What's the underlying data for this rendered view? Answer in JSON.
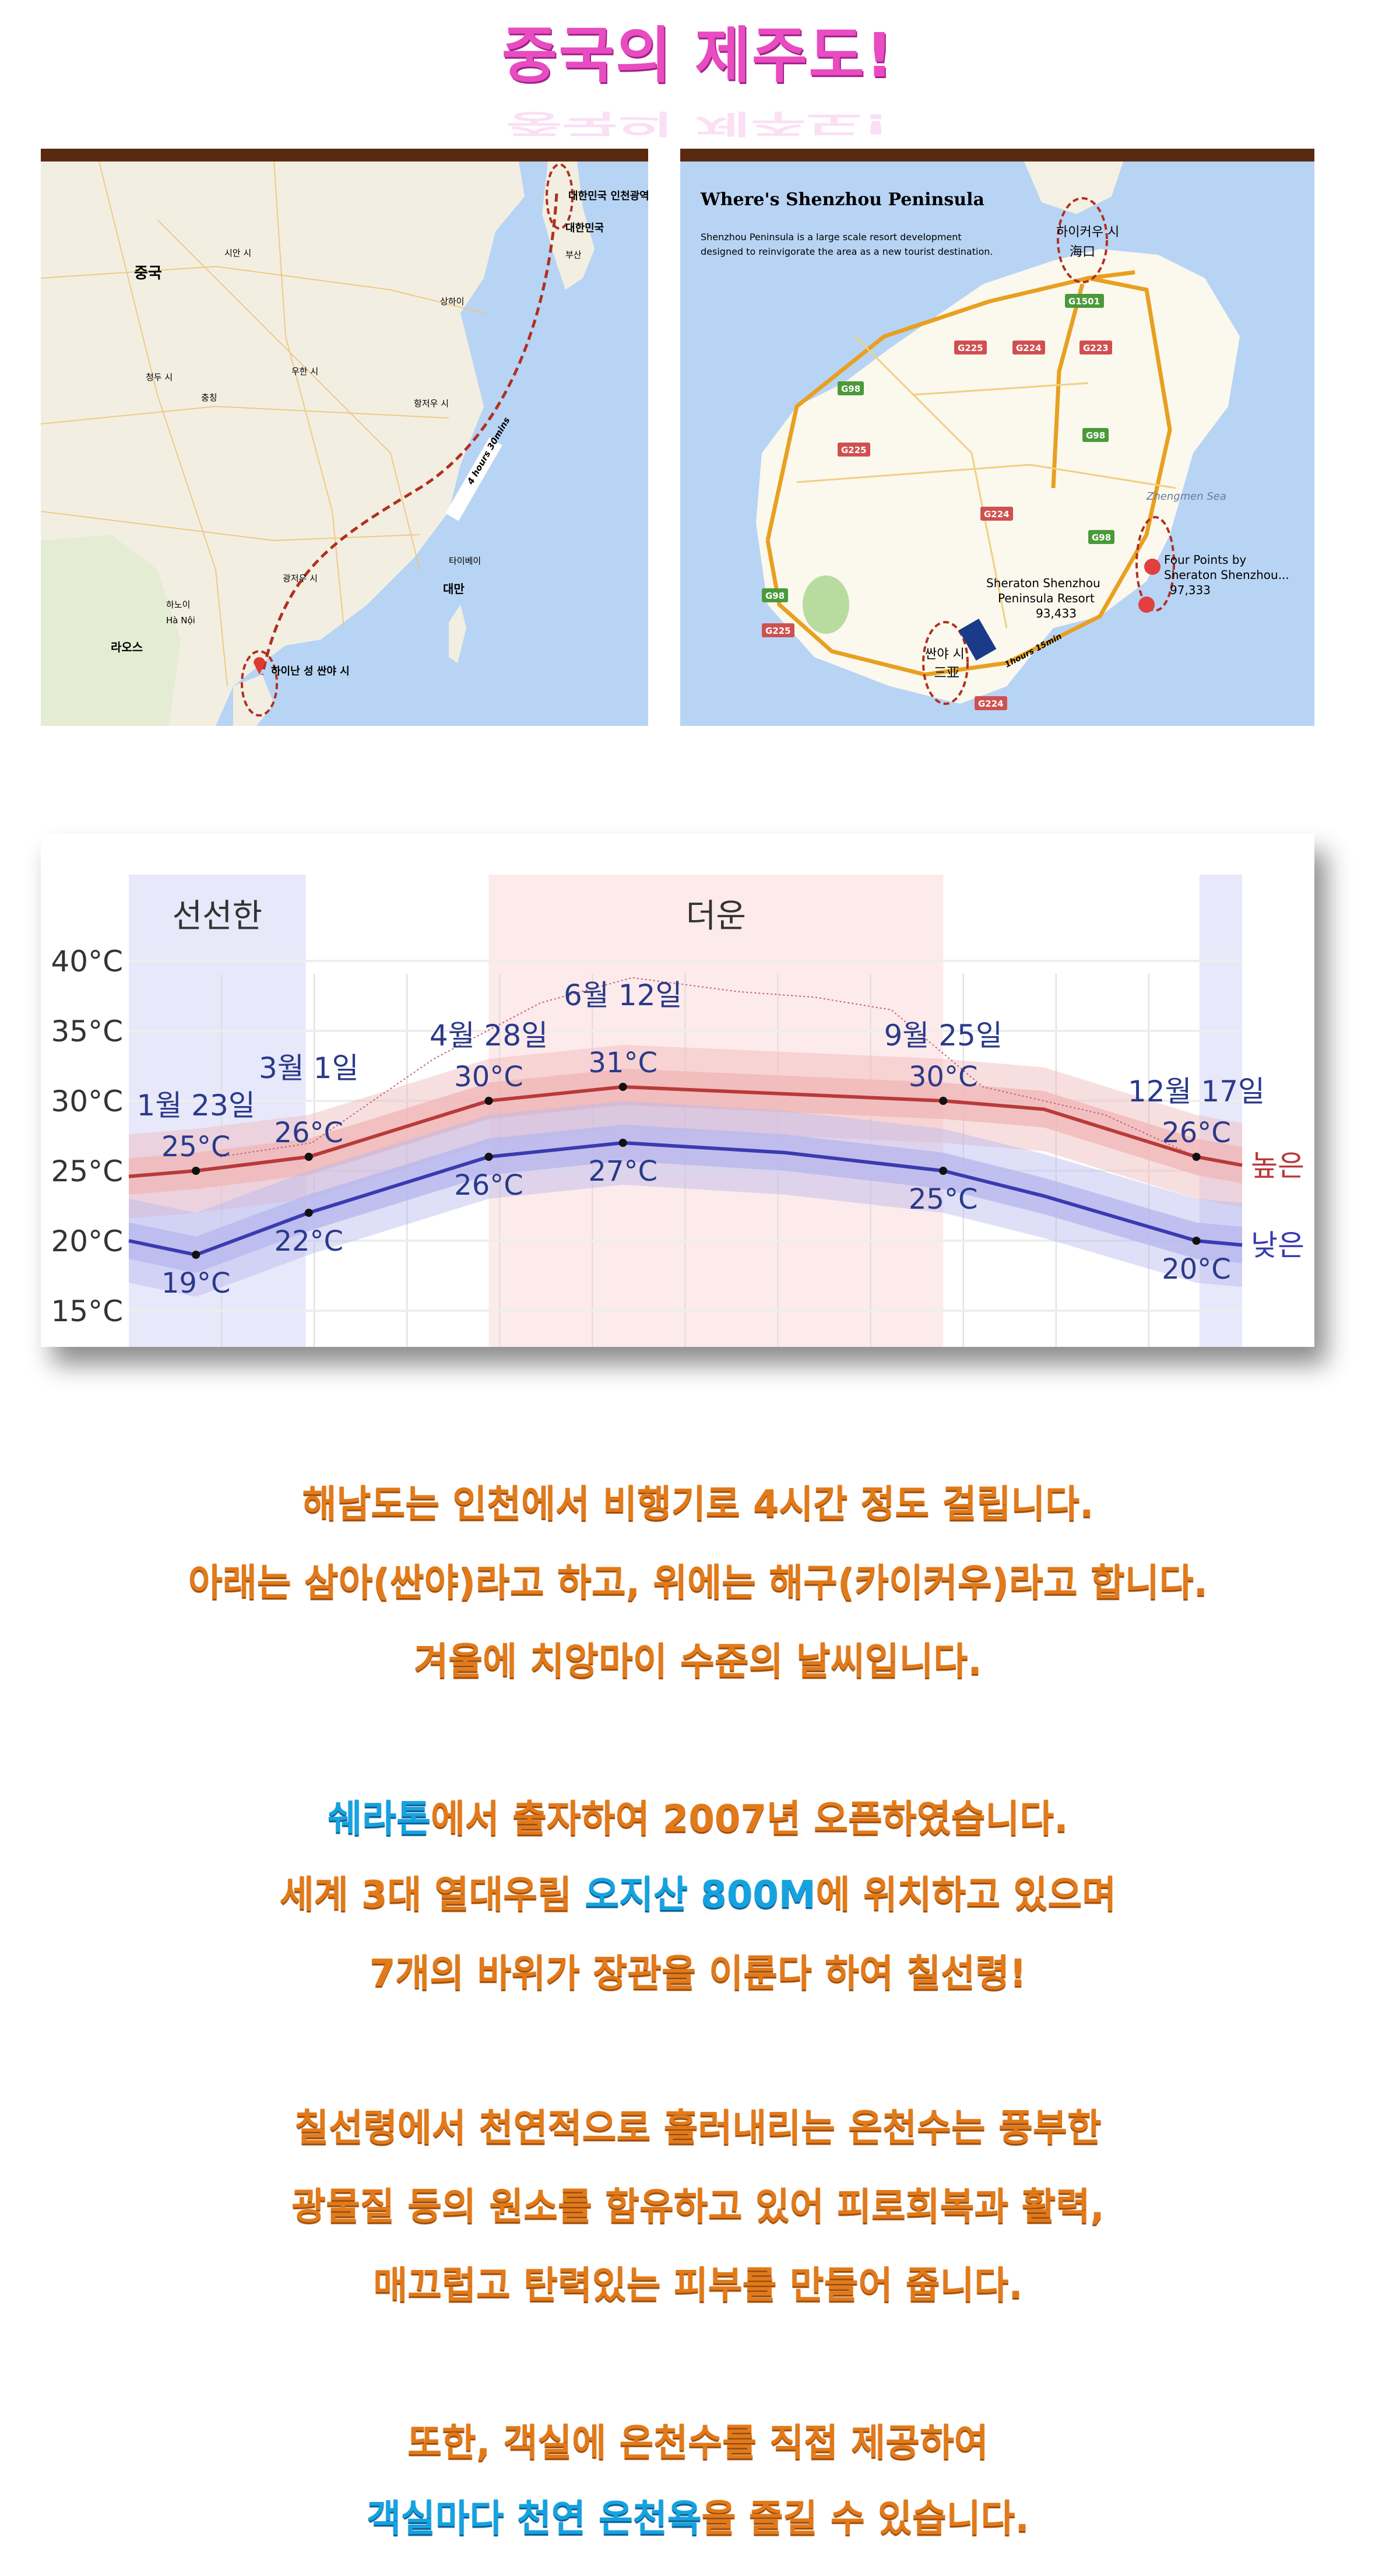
{
  "title": "중국의 제주도!",
  "map_left": {
    "labels": {
      "china": "중국",
      "incheon": "대한민국 인천광역시",
      "korea": "대한민국",
      "flight": "4 hours 30mins",
      "sanya": "하이난 성 싼야 시",
      "laos": "라오스",
      "taiwan": "대만",
      "hanoi": "하노이",
      "hanoi_en": "Hà Nội",
      "shanghai": "상하이",
      "xian": "시안 시",
      "chengdu": "청두 시",
      "chongqing": "충칭",
      "wuhan": "우한 시",
      "hangzhou": "항저우 시",
      "taipei": "타이베이",
      "busan": "부산",
      "guangzhou": "광저우 시"
    }
  },
  "map_right": {
    "heading": "Where's Shenzhou Peninsula",
    "description_1": "Shenzhou Peninsula is a large scale resort development",
    "description_2": "designed to reinvigorate the area as a new tourist destination.",
    "haikou": "하이커우 시",
    "haikou_cn": "海口",
    "sanya": "싼야 시",
    "sanya_cn": "三亚",
    "sheraton_1": "Sheraton Shenzhou",
    "sheraton_2": "Peninsula Resort",
    "sheraton_price": "93,433",
    "fourpoints_1": "Four Points by",
    "fourpoints_2": "Sheraton Shenzhou...",
    "fourpoints_price": "97,333",
    "sea": "Zhengmen Sea",
    "drive": "1hours 15min",
    "roads": [
      "G1501",
      "G225",
      "G224",
      "G223",
      "G98",
      "G98",
      "G225",
      "G224",
      "G98",
      "G98",
      "G225",
      "G224"
    ]
  },
  "chart_data": {
    "type": "line",
    "title": "",
    "ylabel": "",
    "ylim": [
      15,
      40
    ],
    "yticks": [
      "15°C",
      "20°C",
      "25°C",
      "30°C",
      "35°C",
      "40°C"
    ],
    "x_unit": "day of year",
    "xlim": [
      0,
      365
    ],
    "seasons": [
      {
        "label": "선선한",
        "start": 0,
        "end": 58,
        "color": "#e8e8fb"
      },
      {
        "label": "더운",
        "start": 118,
        "end": 267,
        "color": "#fdeaea"
      },
      {
        "label": "",
        "start": 351,
        "end": 365,
        "color": "#e8e8fb"
      }
    ],
    "series": [
      {
        "name": "높은",
        "color": "#b83a3a",
        "band": "#f0b8b8",
        "x": [
          0,
          22,
          59,
          118,
          162,
          215,
          267,
          300,
          350,
          365
        ],
        "values": [
          24.6,
          25,
          26,
          30,
          31,
          30.5,
          30,
          29.4,
          26,
          25.4
        ]
      },
      {
        "name": "낮은",
        "color": "#3a3ab0",
        "band": "#b8b8ee",
        "x": [
          0,
          22,
          59,
          118,
          162,
          215,
          267,
          300,
          350,
          365
        ],
        "values": [
          20,
          19,
          22,
          26,
          27,
          26.3,
          25,
          23.2,
          20,
          19.7
        ]
      }
    ],
    "annotations": [
      {
        "date": "1월 23일",
        "x": 22,
        "high": "25°C",
        "low": "19°C",
        "hv": 25,
        "lv": 19
      },
      {
        "date": "3월 1일",
        "x": 59,
        "high": "26°C",
        "low": "22°C",
        "hv": 26,
        "lv": 22
      },
      {
        "date": "4월 28일",
        "x": 118,
        "high": "30°C",
        "low": "26°C",
        "hv": 30,
        "lv": 26
      },
      {
        "date": "6월 12일",
        "x": 162,
        "high": "31°C",
        "low": "27°C",
        "hv": 31,
        "lv": 27
      },
      {
        "date": "9월 25일",
        "x": 267,
        "high": "30°C",
        "low": "25°C",
        "hv": 30,
        "lv": 25
      },
      {
        "date": "12월 17일",
        "x": 350,
        "high": "26°C",
        "low": "20°C",
        "hv": 26,
        "lv": 20
      }
    ],
    "record": {
      "x": [
        30,
        60,
        100,
        135,
        165,
        200,
        225,
        250,
        280,
        320,
        350
      ],
      "values": [
        26,
        27,
        33,
        37,
        38.8,
        37.8,
        37.4,
        36.5,
        31,
        29,
        26
      ]
    }
  },
  "body": {
    "p1": [
      "해남도는 인천에서 비행기로 4시간 정도 걸립니다.",
      "아래는 삼아(싼야)라고 하고, 위에는 해구(카이커우)라고 합니다.",
      "겨울에 치앙마이 수준의 날씨입니다."
    ],
    "p2_l1_blue": "쉐라톤",
    "p2_l1_rest": "에서 출자하여 2007년 오픈하였습니다.",
    "p2_l2_a": "세계 3대 열대우림 ",
    "p2_l2_blue1": "오지산",
    "p2_l2_sp": " ",
    "p2_l2_blue2": "800M",
    "p2_l2_b": "에 위치하고 있으며",
    "p2_l3": "7개의 바위가 장관을 이룬다 하여 칠선령!",
    "p3": [
      "칠선령에서 천연적으로 흘러내리는 온천수는 풍부한",
      "광물질 등의 원소를 함유하고 있어 피로회복과 활력,",
      "매끄럽고 탄력있는 피부를 만들어 줍니다."
    ],
    "p4_l1": "또한, 객실에 온천수를 직접 제공하여",
    "p4_l2_blue": "객실마다 천연 온천욕",
    "p4_l2_rest": "을 즐길 수 있습니다."
  }
}
